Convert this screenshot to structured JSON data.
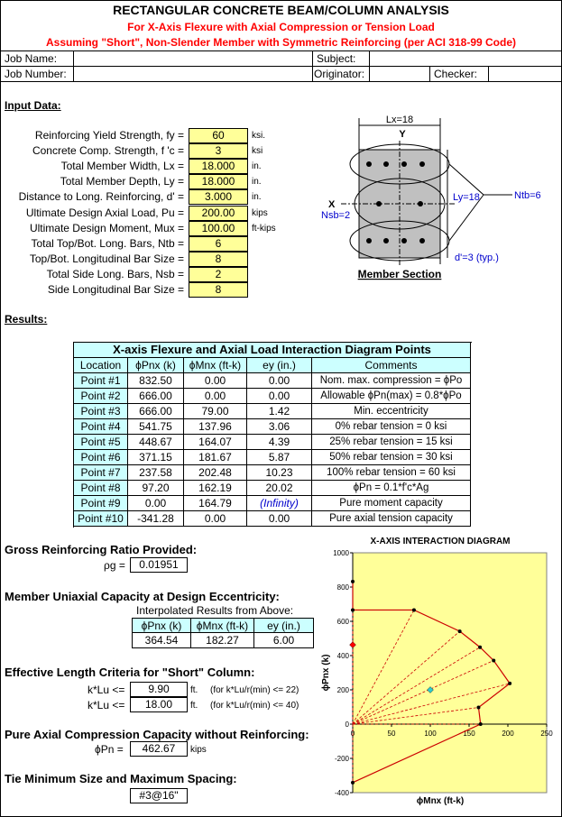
{
  "header": {
    "title": "RECTANGULAR CONCRETE BEAM/COLUMN ANALYSIS",
    "subtitle_1": "For X-Axis Flexure with Axial Compression or Tension Load",
    "subtitle_2": "Assuming \"Short\", Non-Slender Member with Symmetric Reinforcing (per ACI 318-99 Code)"
  },
  "job": {
    "job_name": "Job Name:",
    "subject": "Subject:",
    "job_number": "Job Number:",
    "originator": "Originator:",
    "checker": "Checker:"
  },
  "input": {
    "heading": "Input Data:",
    "rows": [
      [
        "Reinforcing Yield Strength, fy =",
        "60",
        "ksi."
      ],
      [
        "Concrete Comp. Strength, f 'c =",
        "3",
        "ksi"
      ],
      [
        "Total Member Width, Lx =",
        "18.000",
        "in."
      ],
      [
        "Total Member Depth, Ly =",
        "18.000",
        "in."
      ],
      [
        "Distance to Long. Reinforcing, d' =",
        "3.000",
        "in."
      ],
      [
        "Ultimate Design Axial Load, Pu =",
        "200.00",
        "kips"
      ],
      [
        "Ultimate Design Moment, Mux =",
        "100.00",
        "ft-kips"
      ],
      [
        "Total Top/Bot. Long. Bars, Ntb =",
        "6"
      ],
      [
        "Top/Bot. Longitudinal Bar Size =",
        "8"
      ],
      [
        "Total Side Long. Bars, Nsb =",
        "2"
      ],
      [
        "Side Longitudinal Bar Size =",
        "8"
      ]
    ]
  },
  "section": {
    "lx": "Lx=18",
    "y_axis": "Y",
    "x_axis": "X",
    "nsb": "Nsb=2",
    "ly": "Ly=18",
    "ntb": "Ntb=6",
    "d": "d'=3 (typ.)",
    "caption": "Member Section"
  },
  "results": {
    "heading": "Results:"
  },
  "table": {
    "title": "X-axis Flexure and Axial Load Interaction Diagram Points",
    "headers": [
      "Location",
      "ϕPnx (k)",
      "ϕMnx (ft-k)",
      "ey (in.)",
      "Comments"
    ],
    "rows": [
      [
        "Point #1",
        "832.50",
        "0.00",
        "0.00",
        "Nom. max. compression = ϕPo"
      ],
      [
        "Point #2",
        "666.00",
        "0.00",
        "0.00",
        "Allowable ϕPn(max) = 0.8*ϕPo"
      ],
      [
        "Point #3",
        "666.00",
        "79.00",
        "1.42",
        "Min. eccentricity"
      ],
      [
        "Point #4",
        "541.75",
        "137.96",
        "3.06",
        "0% rebar tension = 0 ksi"
      ],
      [
        "Point #5",
        "448.67",
        "164.07",
        "4.39",
        "25% rebar tension = 15 ksi"
      ],
      [
        "Point #6",
        "371.15",
        "181.67",
        "5.87",
        "50% rebar tension = 30 ksi"
      ],
      [
        "Point #7",
        "237.58",
        "202.48",
        "10.23",
        "100% rebar tension = 60 ksi"
      ],
      [
        "Point #8",
        "97.20",
        "162.19",
        "20.02",
        "ϕPn = 0.1*f'c*Ag"
      ],
      [
        "Point #9",
        "0.00",
        "164.79",
        "(Infinity)",
        "Pure moment capacity"
      ],
      [
        "Point #10",
        "-341.28",
        "0.00",
        "0.00",
        "Pure axial tension capacity"
      ]
    ]
  },
  "gross": {
    "heading": "Gross Reinforcing Ratio Provided:",
    "label": "ρg =",
    "value": "0.01951"
  },
  "uniaxial": {
    "heading": "Member Uniaxial Capacity at Design Eccentricity:",
    "note": "Interpolated Results from Above:",
    "headers": [
      "ϕPnx (k)",
      "ϕMnx (ft-k)",
      "ey (in.)"
    ],
    "values": [
      "364.54",
      "182.27",
      "6.00"
    ]
  },
  "length": {
    "heading": "Effective Length Criteria for \"Short\" Column:",
    "rows": [
      [
        "k*Lu <=",
        "9.90",
        "ft.",
        "(for k*Lu/r(min) <= 22)"
      ],
      [
        "k*Lu <=",
        "18.00",
        "ft.",
        "(for k*Lu/r(min) <= 40)"
      ]
    ]
  },
  "pure": {
    "heading": "Pure Axial Compression Capacity without Reinforcing:",
    "label": "ϕPn =",
    "value": "462.67",
    "unit": "kips"
  },
  "tie": {
    "heading": "Tie Minimum Size and Maximum Spacing:",
    "value": "#3@16\""
  },
  "chart_data": {
    "type": "line",
    "title": "X-AXIS INTERACTION DIAGRAM",
    "x_label": "ϕMnx (ft-k)",
    "y_label": "ϕPnx (k)",
    "xlim": [
      0,
      250
    ],
    "xticks": [
      0,
      50,
      100,
      150,
      200,
      250
    ],
    "ylim": [
      -400,
      1000
    ],
    "yticks": [
      -400,
      -200,
      0,
      200,
      400,
      600,
      800,
      1000
    ],
    "series": [
      {
        "color": "#cc0000",
        "x": [
          0,
          0,
          79,
          137.96,
          164.07,
          181.67,
          202.48,
          162.19,
          164.79,
          0
        ],
        "values": [
          832.5,
          666,
          666,
          541.75,
          448.67,
          371.15,
          237.58,
          97.2,
          0,
          -341.28
        ]
      },
      {
        "color": "#33cccc",
        "x": [
          100
        ],
        "values": [
          200
        ]
      },
      {
        "color": "#ff0000",
        "x": [
          0
        ],
        "values": [
          462.67
        ]
      }
    ]
  }
}
